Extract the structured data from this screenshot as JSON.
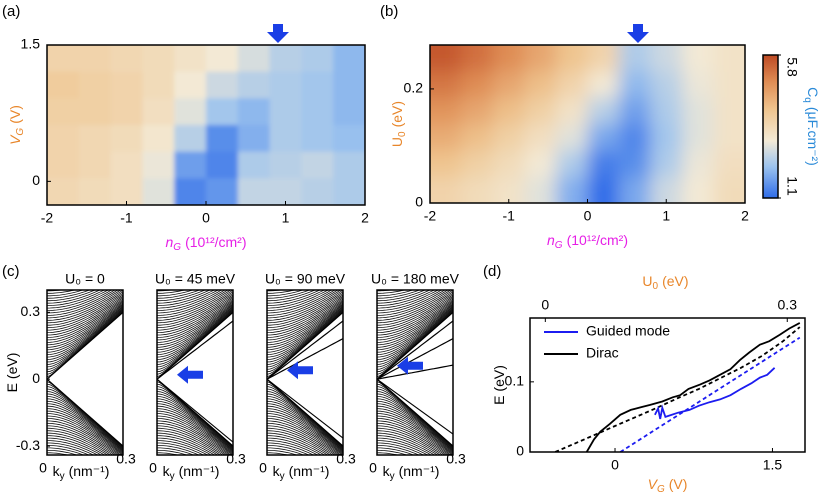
{
  "chart_data": [
    {
      "type": "heatmap",
      "panel": "(a)",
      "xlabel": {
        "text": [
          "n",
          "G",
          "(10¹²/cm²)"
        ],
        "color": "#e61ee6",
        "italic": true
      },
      "ylabel": {
        "text": [
          "V",
          "G",
          "(V)"
        ],
        "color": "#e8862a",
        "italic": true
      },
      "xlim": [
        -2,
        2
      ],
      "xticks": [
        -2,
        -1,
        0,
        1,
        2
      ],
      "ylim": [
        -0.26,
        1.5
      ],
      "yticks": [
        0,
        1.5
      ],
      "zlim": [
        1.1,
        5.8
      ],
      "z": [
        [
          3.6,
          3.6,
          3.5,
          3.4,
          3.2,
          3.0,
          2.7,
          2.4,
          2.3,
          2.0
        ],
        [
          3.8,
          3.7,
          3.6,
          3.4,
          3.0,
          2.6,
          2.4,
          2.3,
          2.2,
          2.0
        ],
        [
          3.7,
          3.7,
          3.6,
          3.3,
          2.8,
          2.2,
          2.0,
          2.3,
          2.2,
          2.0
        ],
        [
          3.6,
          3.5,
          3.4,
          3.1,
          2.4,
          1.5,
          1.9,
          2.3,
          2.2,
          2.1
        ],
        [
          3.6,
          3.5,
          3.3,
          2.9,
          1.7,
          1.4,
          2.3,
          2.4,
          2.5,
          2.3
        ],
        [
          3.5,
          3.4,
          3.3,
          2.8,
          1.4,
          1.6,
          2.5,
          2.5,
          2.4,
          2.3
        ]
      ]
    },
    {
      "type": "heatmap",
      "panel": "(b)",
      "xlabel": {
        "text": [
          "n",
          "G",
          "(10¹²/cm²)"
        ],
        "color": "#e61ee6",
        "italic": true
      },
      "ylabel": {
        "text": [
          "U",
          "0",
          "(eV)"
        ],
        "color": "#e8862a",
        "italic": false
      },
      "xlim": [
        -2,
        2
      ],
      "xticks": [
        -2,
        -1,
        0,
        1,
        2
      ],
      "ylim": [
        0,
        0.277
      ],
      "yticks": [
        0,
        0.2
      ],
      "zlim": [
        1.1,
        5.8
      ],
      "z": [
        [
          5.6,
          5.3,
          4.9,
          4.5,
          4.0,
          3.6,
          2.3,
          2.6,
          3.0,
          3.2
        ],
        [
          5.2,
          4.9,
          4.5,
          4.1,
          3.6,
          3.0,
          2.0,
          2.4,
          2.9,
          3.2
        ],
        [
          4.8,
          4.5,
          4.1,
          3.7,
          3.2,
          2.4,
          1.7,
          2.3,
          2.8,
          3.2
        ],
        [
          4.4,
          4.1,
          3.7,
          3.3,
          2.8,
          1.8,
          1.4,
          2.2,
          2.8,
          3.2
        ],
        [
          4.0,
          3.7,
          3.4,
          3.0,
          2.3,
          1.3,
          1.5,
          2.3,
          2.9,
          3.3
        ],
        [
          3.6,
          3.4,
          3.2,
          2.8,
          1.9,
          1.1,
          1.8,
          2.6,
          3.0,
          3.4
        ]
      ],
      "colorbar": {
        "label": {
          "text": [
            "C",
            "q",
            "(μF.cm⁻²)"
          ],
          "color": "#2a8ad8",
          "italic": false
        },
        "ticks": [
          1.1,
          5.8
        ]
      }
    },
    {
      "type": "band",
      "panel": "(c)",
      "title": "U₀ = 0",
      "xlabel": {
        "text": [
          "k",
          "y",
          "(nm⁻¹)"
        ],
        "color": "#000000",
        "italic": false
      },
      "ylabel": {
        "text": [
          "E",
          "",
          "(eV)"
        ],
        "color": "#000000",
        "italic": false
      },
      "xlim": [
        0,
        0.3
      ],
      "xticks": [
        0,
        0.3
      ],
      "ylim": [
        -0.34,
        0.4
      ],
      "yticks": [
        0.3,
        0,
        -0.3
      ]
    },
    {
      "type": "band",
      "title": "U₀ = 45 meV",
      "xlabel": {
        "text": [
          "k",
          "y",
          "(nm⁻¹)"
        ],
        "color": "#000000",
        "italic": false
      },
      "xlim": [
        0,
        0.3
      ],
      "xticks": [
        0,
        0.3
      ],
      "ylim": [
        -0.34,
        0.4
      ]
    },
    {
      "type": "band",
      "title": "U₀ = 90 meV",
      "xlabel": {
        "text": [
          "k",
          "y",
          "(nm⁻¹)"
        ],
        "color": "#000000",
        "italic": false
      },
      "xlim": [
        0,
        0.3
      ],
      "xticks": [
        0,
        0.3
      ],
      "ylim": [
        -0.34,
        0.4
      ]
    },
    {
      "type": "band",
      "title": "U₀ = 180 meV",
      "xlabel": {
        "text": [
          "k",
          "y",
          "(nm⁻¹)"
        ],
        "color": "#000000",
        "italic": false
      },
      "xlim": [
        0,
        0.3
      ],
      "xticks": [
        0,
        0.3
      ],
      "ylim": [
        -0.34,
        0.4
      ]
    },
    {
      "type": "line",
      "panel": "(d)",
      "xlabel": {
        "text": [
          "V",
          "G",
          "(V)"
        ],
        "color": "#e8862a",
        "italic": true
      },
      "x2label": {
        "text": [
          "U",
          "0",
          "(eV)"
        ],
        "color": "#e8862a",
        "italic": false
      },
      "ylabel": {
        "text": [
          "E",
          "",
          "(eV)"
        ],
        "color": "#000000",
        "italic": false
      },
      "xlim": [
        -0.81,
        1.81
      ],
      "xticks": [
        0,
        1.5
      ],
      "x2lim": [
        -0.019,
        0.322
      ],
      "x2ticks": [
        0,
        0.3
      ],
      "ylim": [
        0,
        0.191
      ],
      "yticks": [
        0,
        0.1
      ],
      "legend": "upper left",
      "series": [
        {
          "name": "Guided mode",
          "color": "#1c1cf0",
          "x": [
            0.38,
            0.41,
            0.43,
            0.45,
            0.48,
            0.52,
            0.6,
            0.71,
            0.8,
            0.9,
            1.0,
            1.1,
            1.2,
            1.3,
            1.38,
            1.45,
            1.52
          ],
          "values": [
            0.053,
            0.062,
            0.047,
            0.063,
            0.05,
            0.052,
            0.056,
            0.06,
            0.066,
            0.071,
            0.075,
            0.081,
            0.09,
            0.098,
            0.106,
            0.11,
            0.12
          ]
        },
        {
          "name": "Dirac",
          "color": "#000000",
          "x": [
            -0.27,
            -0.2,
            -0.14,
            -0.05,
            0.05,
            0.15,
            0.25,
            0.33,
            0.45,
            0.55,
            0.62,
            0.7,
            0.81,
            0.9,
            1.0,
            1.1,
            1.19,
            1.28,
            1.38,
            1.47,
            1.57,
            1.66,
            1.76
          ],
          "values": [
            0,
            0.018,
            0.029,
            0.04,
            0.053,
            0.06,
            0.064,
            0.067,
            0.072,
            0.078,
            0.081,
            0.09,
            0.096,
            0.102,
            0.11,
            0.118,
            0.131,
            0.142,
            0.153,
            0.158,
            0.167,
            0.176,
            0.184
          ]
        }
      ],
      "fits": [
        {
          "color": "#000000",
          "x": [
            -0.57,
            -0.4,
            -0.2,
            0,
            0.2,
            0.4,
            0.6,
            0.8,
            1.0,
            1.2,
            1.4,
            1.6,
            1.76
          ],
          "values": [
            0,
            0.011,
            0.024,
            0.037,
            0.05,
            0.063,
            0.077,
            0.09,
            0.105,
            0.12,
            0.137,
            0.158,
            0.178
          ]
        },
        {
          "color": "#1c1cf0",
          "x": [
            0.05,
            1.76
          ],
          "values": [
            0,
            0.163
          ]
        }
      ]
    }
  ]
}
